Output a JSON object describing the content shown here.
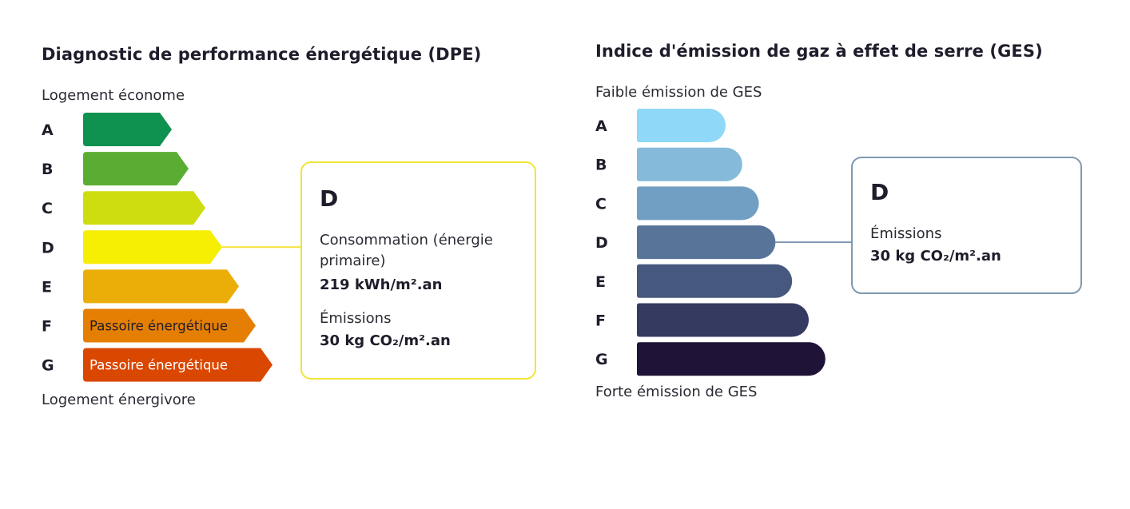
{
  "dpe": {
    "title": "Diagnostic de performance énergétique (DPE)",
    "top_caption": "Logement économe",
    "bottom_caption": "Logement énergivore",
    "box": {
      "class": "D",
      "consumption_label": "Consommation (énergie primaire)",
      "consumption_value": "219 kWh/m².an",
      "emissions_label": "Émissions",
      "emissions_value": "30 kg CO₂/m².an"
    },
    "colors": {
      "box_border": "#f2e43a",
      "connector": "#f2e43a"
    }
  },
  "ges": {
    "title": "Indice d'émission de gaz à effet de serre (GES)",
    "top_caption": "Faible émission de GES",
    "bottom_caption": "Forte émission de GES",
    "box": {
      "class": "D",
      "emissions_label": "Émissions",
      "emissions_value": "30 kg CO₂/m².an"
    },
    "colors": {
      "box_border": "#7f99b2",
      "connector": "#7f99b2"
    }
  },
  "chart_data": [
    {
      "type": "bar",
      "id": "dpe",
      "categories": [
        "A",
        "B",
        "C",
        "D",
        "E",
        "F",
        "G"
      ],
      "bar_labels": [
        "",
        "",
        "",
        "",
        "",
        "Passoire énergétique",
        "Passoire énergétique"
      ],
      "colors": [
        "#0f9150",
        "#5aad33",
        "#cddd10",
        "#f6ee03",
        "#ebad08",
        "#e57f03",
        "#d94700"
      ],
      "label_colors": [
        "#ffffff",
        "#ffffff",
        "#1f1d2b",
        "#1f1d2b",
        "#1f1d2b",
        "#1f1d2b",
        "#ffffff"
      ],
      "highlight": "D"
    },
    {
      "type": "bar",
      "id": "ges",
      "categories": [
        "A",
        "B",
        "C",
        "D",
        "E",
        "F",
        "G"
      ],
      "colors": [
        "#8fd8f7",
        "#85bada",
        "#719fc3",
        "#587599",
        "#47587e",
        "#353a60",
        "#1f1337"
      ],
      "highlight": "D"
    }
  ]
}
